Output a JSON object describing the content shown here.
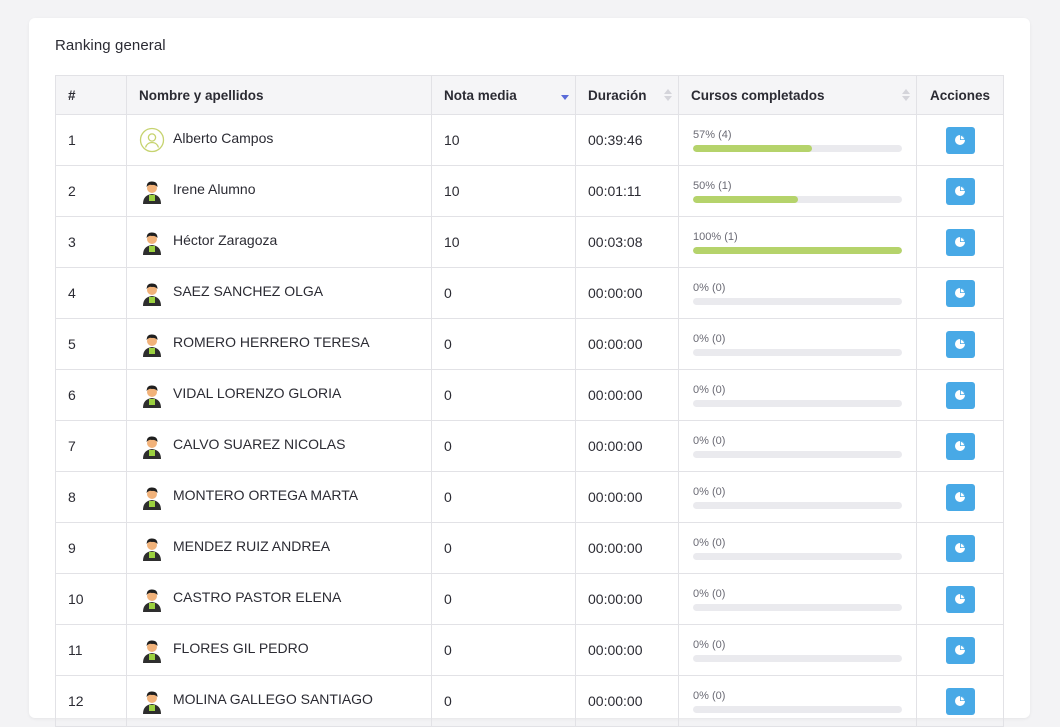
{
  "section": {
    "title": "Ranking general"
  },
  "columns": {
    "rank": "#",
    "name": "Nombre y apellidos",
    "average": "Nota media",
    "duration": "Duración",
    "completed": "Cursos completados",
    "actions": "Acciones"
  },
  "sort": {
    "column": "average",
    "direction": "desc"
  },
  "colors": {
    "progress_fill": "#b5d36b",
    "progress_track": "#eaeaee",
    "action_button": "#48a9e6",
    "sort_active": "#5a6bd8"
  },
  "rows": [
    {
      "rank": "1",
      "name": "Alberto Campos",
      "avatar": "user-outline-icon",
      "average": "10",
      "duration": "00:39:46",
      "progress_label": "57% (4)",
      "progress_pct": 57
    },
    {
      "rank": "2",
      "name": "Irene Alumno",
      "avatar": "student-avatar-icon",
      "average": "10",
      "duration": "00:01:11",
      "progress_label": "50% (1)",
      "progress_pct": 50
    },
    {
      "rank": "3",
      "name": "Héctor Zaragoza",
      "avatar": "student-avatar-icon",
      "average": "10",
      "duration": "00:03:08",
      "progress_label": "100% (1)",
      "progress_pct": 100
    },
    {
      "rank": "4",
      "name": "SAEZ SANCHEZ OLGA",
      "avatar": "student-avatar-icon",
      "average": "0",
      "duration": "00:00:00",
      "progress_label": "0% (0)",
      "progress_pct": 0
    },
    {
      "rank": "5",
      "name": "ROMERO HERRERO TERESA",
      "avatar": "student-avatar-icon",
      "average": "0",
      "duration": "00:00:00",
      "progress_label": "0% (0)",
      "progress_pct": 0
    },
    {
      "rank": "6",
      "name": "VIDAL LORENZO GLORIA",
      "avatar": "student-avatar-icon",
      "average": "0",
      "duration": "00:00:00",
      "progress_label": "0% (0)",
      "progress_pct": 0
    },
    {
      "rank": "7",
      "name": "CALVO SUAREZ NICOLAS",
      "avatar": "student-avatar-icon",
      "average": "0",
      "duration": "00:00:00",
      "progress_label": "0% (0)",
      "progress_pct": 0
    },
    {
      "rank": "8",
      "name": "MONTERO ORTEGA MARTA",
      "avatar": "student-avatar-icon",
      "average": "0",
      "duration": "00:00:00",
      "progress_label": "0% (0)",
      "progress_pct": 0
    },
    {
      "rank": "9",
      "name": "MENDEZ RUIZ ANDREA",
      "avatar": "student-avatar-icon",
      "average": "0",
      "duration": "00:00:00",
      "progress_label": "0% (0)",
      "progress_pct": 0
    },
    {
      "rank": "10",
      "name": "CASTRO PASTOR ELENA",
      "avatar": "student-avatar-icon",
      "average": "0",
      "duration": "00:00:00",
      "progress_label": "0% (0)",
      "progress_pct": 0
    },
    {
      "rank": "11",
      "name": "FLORES GIL PEDRO",
      "avatar": "student-avatar-icon",
      "average": "0",
      "duration": "00:00:00",
      "progress_label": "0% (0)",
      "progress_pct": 0
    },
    {
      "rank": "12",
      "name": "MOLINA GALLEGO SANTIAGO",
      "avatar": "student-avatar-icon",
      "average": "0",
      "duration": "00:00:00",
      "progress_label": "0% (0)",
      "progress_pct": 0
    }
  ]
}
